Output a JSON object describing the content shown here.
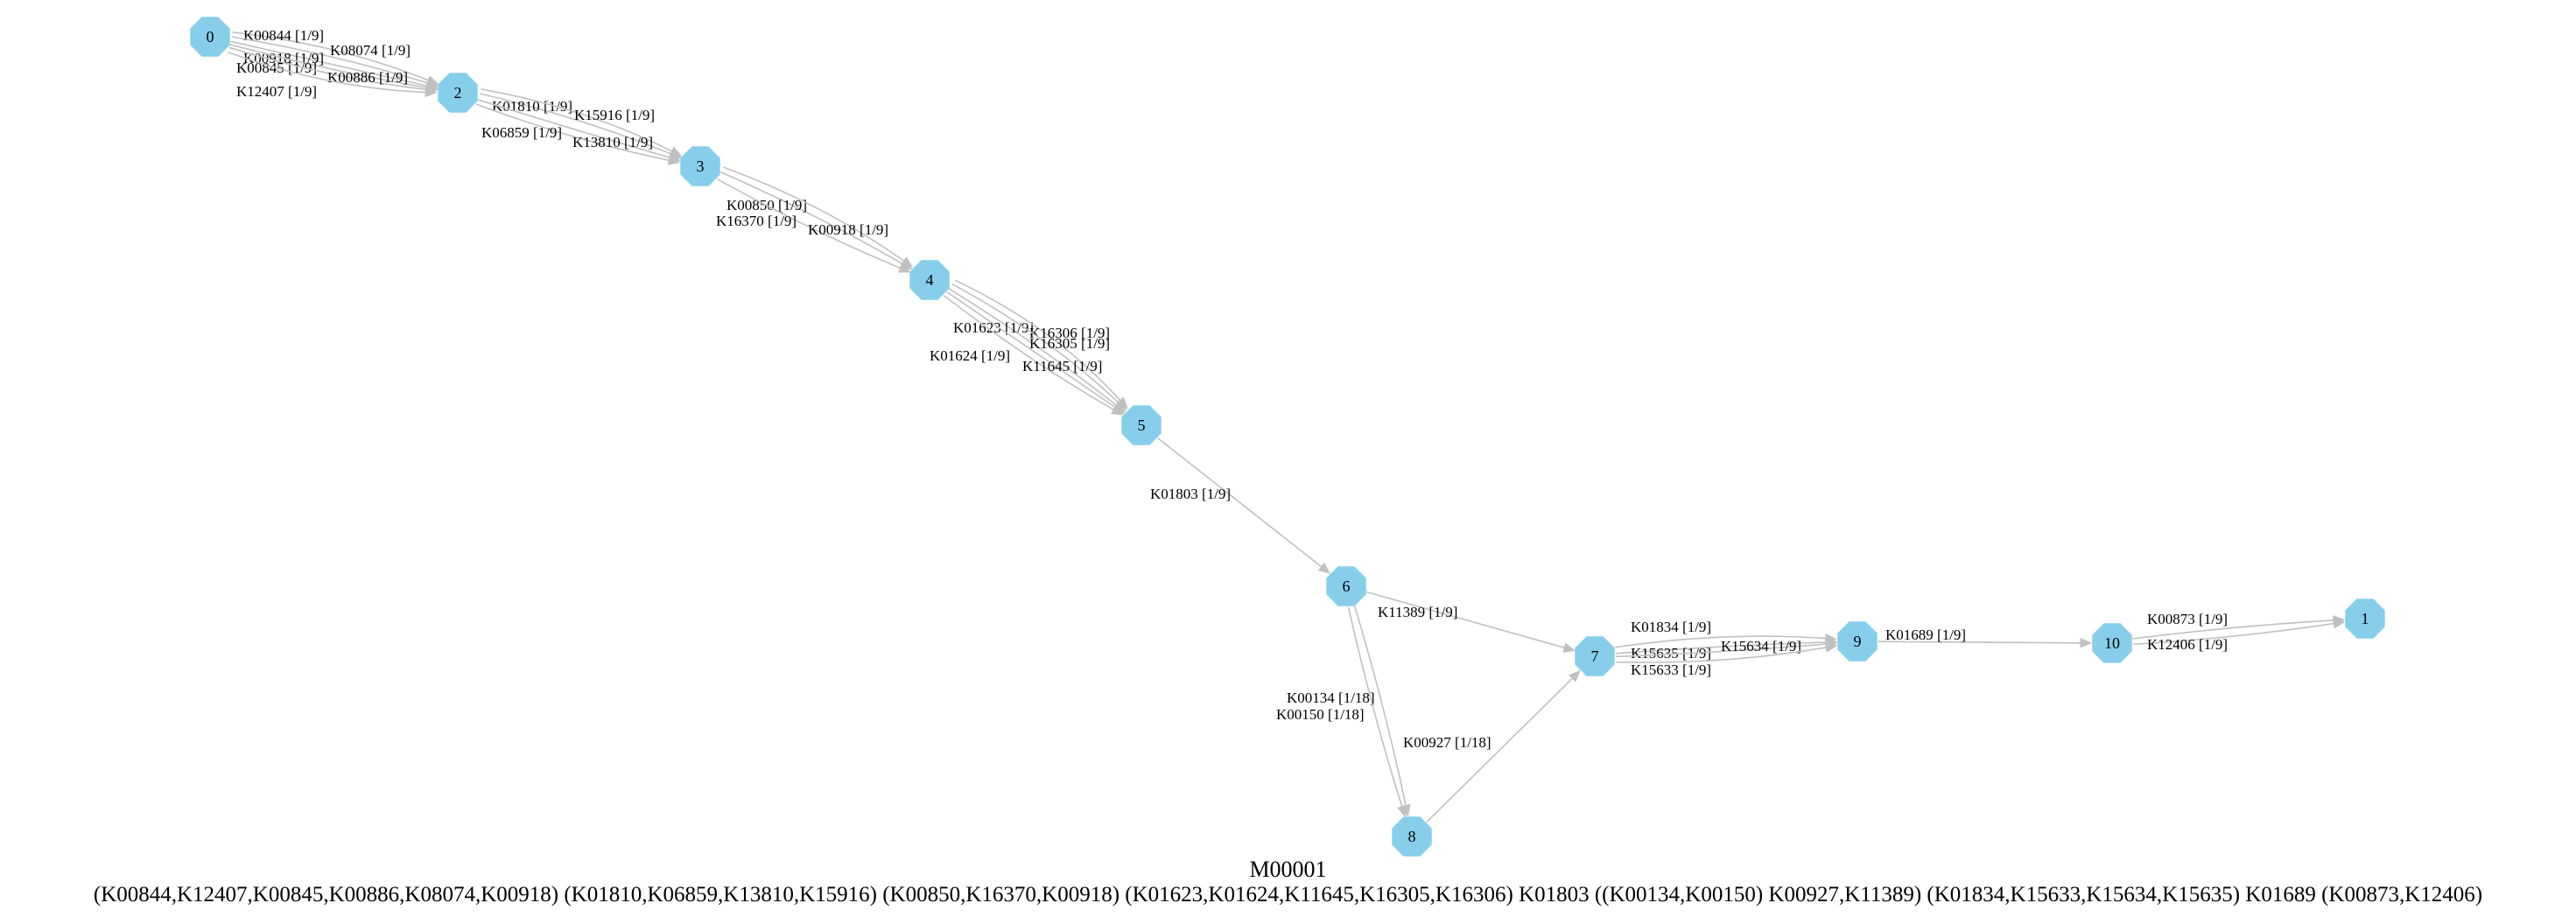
{
  "diagram": {
    "title": "M00001",
    "definition": "(K00844,K12407,K00845,K00886,K08074,K00918) (K01810,K06859,K13810,K15916) (K00850,K16370,K00918) (K01623,K01624,K11645,K16305,K16306) K01803 ((K00134,K00150) K00927,K11389) (K01834,K15633,K15634,K15635) K01689 (K00873,K12406)",
    "node_color": "#87CEEB",
    "edge_color": "#c0c0c0",
    "nodes": [
      {
        "id": "0",
        "label": "0"
      },
      {
        "id": "2",
        "label": "2"
      },
      {
        "id": "3",
        "label": "3"
      },
      {
        "id": "4",
        "label": "4"
      },
      {
        "id": "5",
        "label": "5"
      },
      {
        "id": "6",
        "label": "6"
      },
      {
        "id": "7",
        "label": "7"
      },
      {
        "id": "8",
        "label": "8"
      },
      {
        "id": "9",
        "label": "9"
      },
      {
        "id": "10",
        "label": "10"
      },
      {
        "id": "1",
        "label": "1"
      }
    ],
    "edges": [
      {
        "from": "0",
        "to": "2",
        "label": "K00844 [1/9]"
      },
      {
        "from": "0",
        "to": "2",
        "label": "K08074 [1/9]"
      },
      {
        "from": "0",
        "to": "2",
        "label": "K00918 [1/9]"
      },
      {
        "from": "0",
        "to": "2",
        "label": "K00845 [1/9]"
      },
      {
        "from": "0",
        "to": "2",
        "label": "K00886 [1/9]"
      },
      {
        "from": "0",
        "to": "2",
        "label": "K12407 [1/9]"
      },
      {
        "from": "2",
        "to": "3",
        "label": "K01810 [1/9]"
      },
      {
        "from": "2",
        "to": "3",
        "label": "K15916 [1/9]"
      },
      {
        "from": "2",
        "to": "3",
        "label": "K06859 [1/9]"
      },
      {
        "from": "2",
        "to": "3",
        "label": "K13810 [1/9]"
      },
      {
        "from": "3",
        "to": "4",
        "label": "K00850 [1/9]"
      },
      {
        "from": "3",
        "to": "4",
        "label": "K16370 [1/9]"
      },
      {
        "from": "3",
        "to": "4",
        "label": "K00918 [1/9]"
      },
      {
        "from": "4",
        "to": "5",
        "label": "K01623 [1/9]"
      },
      {
        "from": "4",
        "to": "5",
        "label": "K16306 [1/9]"
      },
      {
        "from": "4",
        "to": "5",
        "label": "K16305 [1/9]"
      },
      {
        "from": "4",
        "to": "5",
        "label": "K01624 [1/9]"
      },
      {
        "from": "4",
        "to": "5",
        "label": "K11645 [1/9]"
      },
      {
        "from": "5",
        "to": "6",
        "label": "K01803 [1/9]"
      },
      {
        "from": "6",
        "to": "7",
        "label": "K11389 [1/9]"
      },
      {
        "from": "6",
        "to": "8",
        "label": "K00134 [1/18]"
      },
      {
        "from": "6",
        "to": "8",
        "label": "K00150 [1/18]"
      },
      {
        "from": "8",
        "to": "7",
        "label": "K00927 [1/18]"
      },
      {
        "from": "7",
        "to": "9",
        "label": "K01834 [1/9]"
      },
      {
        "from": "7",
        "to": "9",
        "label": "K15635 [1/9]"
      },
      {
        "from": "7",
        "to": "9",
        "label": "K15634 [1/9]"
      },
      {
        "from": "7",
        "to": "9",
        "label": "K15633 [1/9]"
      },
      {
        "from": "9",
        "to": "10",
        "label": "K01689 [1/9]"
      },
      {
        "from": "10",
        "to": "1",
        "label": "K00873 [1/9]"
      },
      {
        "from": "10",
        "to": "1",
        "label": "K12406 [1/9]"
      }
    ]
  }
}
